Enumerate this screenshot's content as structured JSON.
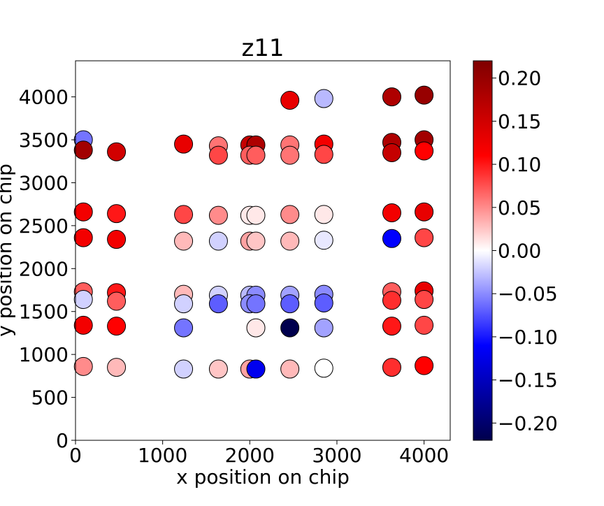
{
  "chart_data": {
    "type": "scatter",
    "title": "z11",
    "xlabel": "x position on chip",
    "ylabel": "y position on chip",
    "xlim": [
      0,
      4300
    ],
    "ylim": [
      0,
      4420
    ],
    "x_ticks": [
      0,
      1000,
      2000,
      3000,
      4000
    ],
    "y_ticks": [
      0,
      500,
      1000,
      1500,
      2000,
      2500,
      3000,
      3500,
      4000
    ],
    "grid": false,
    "colormap": "seismic",
    "colorbar": {
      "min": -0.22,
      "max": 0.22,
      "ticks": [
        0.2,
        0.15,
        0.1,
        0.05,
        0.0,
        -0.05,
        -0.1,
        -0.15,
        -0.2
      ],
      "tick_labels": [
        "0.20",
        "0.15",
        "0.10",
        "0.05",
        "0.00",
        "−0.05",
        "−0.10",
        "−0.15",
        "−0.20"
      ]
    },
    "points": [
      {
        "x": 90,
        "y": 3500,
        "z": -0.06
      },
      {
        "x": 90,
        "y": 3380,
        "z": 0.19
      },
      {
        "x": 470,
        "y": 3360,
        "z": 0.15
      },
      {
        "x": 90,
        "y": 2660,
        "z": 0.12
      },
      {
        "x": 470,
        "y": 2640,
        "z": 0.1
      },
      {
        "x": 90,
        "y": 2360,
        "z": 0.12
      },
      {
        "x": 470,
        "y": 2340,
        "z": 0.12
      },
      {
        "x": 90,
        "y": 1730,
        "z": 0.07
      },
      {
        "x": 470,
        "y": 1720,
        "z": 0.1
      },
      {
        "x": 90,
        "y": 1640,
        "z": -0.02
      },
      {
        "x": 470,
        "y": 1620,
        "z": 0.07
      },
      {
        "x": 90,
        "y": 1340,
        "z": 0.12
      },
      {
        "x": 470,
        "y": 1330,
        "z": 0.11
      },
      {
        "x": 90,
        "y": 860,
        "z": 0.05
      },
      {
        "x": 470,
        "y": 850,
        "z": 0.03
      },
      {
        "x": 1240,
        "y": 3450,
        "z": 0.13
      },
      {
        "x": 1240,
        "y": 2630,
        "z": 0.08
      },
      {
        "x": 1240,
        "y": 2320,
        "z": 0.03
      },
      {
        "x": 1240,
        "y": 1700,
        "z": 0.03
      },
      {
        "x": 1240,
        "y": 1590,
        "z": -0.02
      },
      {
        "x": 1240,
        "y": 1310,
        "z": -0.06
      },
      {
        "x": 1240,
        "y": 830,
        "z": -0.02
      },
      {
        "x": 1640,
        "y": 3430,
        "z": 0.06
      },
      {
        "x": 1640,
        "y": 3320,
        "z": 0.08
      },
      {
        "x": 1640,
        "y": 2620,
        "z": 0.05
      },
      {
        "x": 1640,
        "y": 2320,
        "z": -0.02
      },
      {
        "x": 1640,
        "y": 1690,
        "z": -0.02
      },
      {
        "x": 1640,
        "y": 1590,
        "z": -0.07
      },
      {
        "x": 1640,
        "y": 830,
        "z": 0.025
      },
      {
        "x": 2000,
        "y": 3440,
        "z": 0.16
      },
      {
        "x": 2070,
        "y": 3440,
        "z": 0.18
      },
      {
        "x": 2000,
        "y": 3320,
        "z": 0.07
      },
      {
        "x": 2070,
        "y": 3320,
        "z": 0.07
      },
      {
        "x": 2000,
        "y": 2620,
        "z": 0.01
      },
      {
        "x": 2070,
        "y": 2620,
        "z": 0.01
      },
      {
        "x": 2000,
        "y": 2320,
        "z": 0.04
      },
      {
        "x": 2070,
        "y": 2320,
        "z": 0.025
      },
      {
        "x": 2000,
        "y": 1690,
        "z": -0.03
      },
      {
        "x": 2070,
        "y": 1690,
        "z": -0.05
      },
      {
        "x": 2000,
        "y": 1590,
        "z": -0.05
      },
      {
        "x": 2070,
        "y": 1590,
        "z": -0.06
      },
      {
        "x": 2070,
        "y": 1310,
        "z": 0.01
      },
      {
        "x": 2000,
        "y": 830,
        "z": 0.04
      },
      {
        "x": 2070,
        "y": 830,
        "z": -0.12
      },
      {
        "x": 2460,
        "y": 3960,
        "z": 0.13
      },
      {
        "x": 2460,
        "y": 3440,
        "z": 0.06
      },
      {
        "x": 2460,
        "y": 3320,
        "z": 0.06
      },
      {
        "x": 2460,
        "y": 2630,
        "z": 0.05
      },
      {
        "x": 2460,
        "y": 2320,
        "z": 0.03
      },
      {
        "x": 2460,
        "y": 1690,
        "z": -0.04
      },
      {
        "x": 2460,
        "y": 1590,
        "z": -0.07
      },
      {
        "x": 2460,
        "y": 1310,
        "z": -0.22
      },
      {
        "x": 2460,
        "y": 830,
        "z": 0.03
      },
      {
        "x": 2850,
        "y": 3980,
        "z": -0.03
      },
      {
        "x": 2850,
        "y": 3450,
        "z": 0.12
      },
      {
        "x": 2850,
        "y": 3330,
        "z": 0.08
      },
      {
        "x": 2850,
        "y": 2630,
        "z": 0.01
      },
      {
        "x": 2850,
        "y": 2330,
        "z": -0.01
      },
      {
        "x": 2850,
        "y": 1700,
        "z": -0.05
      },
      {
        "x": 2850,
        "y": 1600,
        "z": -0.07
      },
      {
        "x": 2850,
        "y": 1310,
        "z": -0.04
      },
      {
        "x": 2850,
        "y": 840,
        "z": 0.0
      },
      {
        "x": 3630,
        "y": 4000,
        "z": 0.18
      },
      {
        "x": 3630,
        "y": 3470,
        "z": 0.18
      },
      {
        "x": 3630,
        "y": 3350,
        "z": 0.16
      },
      {
        "x": 3630,
        "y": 2650,
        "z": 0.12
      },
      {
        "x": 3630,
        "y": 2350,
        "z": -0.11
      },
      {
        "x": 3630,
        "y": 1730,
        "z": 0.07
      },
      {
        "x": 3630,
        "y": 1630,
        "z": 0.09
      },
      {
        "x": 3630,
        "y": 1330,
        "z": 0.1
      },
      {
        "x": 3630,
        "y": 850,
        "z": 0.09
      },
      {
        "x": 4000,
        "y": 4020,
        "z": 0.2
      },
      {
        "x": 4000,
        "y": 3500,
        "z": 0.19
      },
      {
        "x": 4000,
        "y": 3370,
        "z": 0.11
      },
      {
        "x": 4000,
        "y": 2660,
        "z": 0.13
      },
      {
        "x": 4000,
        "y": 2360,
        "z": 0.08
      },
      {
        "x": 4000,
        "y": 1740,
        "z": 0.13
      },
      {
        "x": 4000,
        "y": 1640,
        "z": 0.08
      },
      {
        "x": 4000,
        "y": 1340,
        "z": 0.08
      },
      {
        "x": 4000,
        "y": 870,
        "z": 0.11
      }
    ]
  }
}
